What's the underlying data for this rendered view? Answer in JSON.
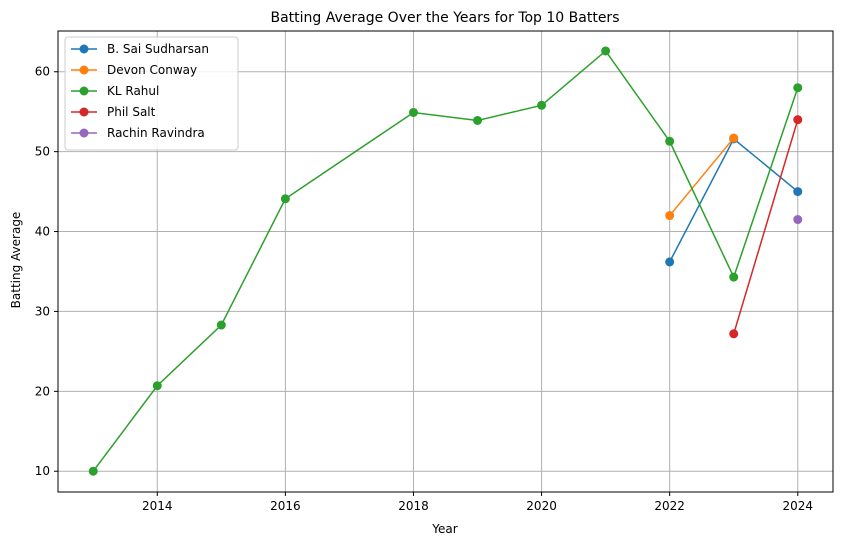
{
  "chart_data": {
    "type": "line",
    "title": "Batting Average Over the Years for Top 10 Batters",
    "xlabel": "Year",
    "ylabel": "Batting Average",
    "xlim": [
      2012.45,
      2024.55
    ],
    "ylim": [
      7.4,
      65.1
    ],
    "xticks": [
      2014,
      2016,
      2018,
      2020,
      2022,
      2024
    ],
    "yticks": [
      10,
      20,
      30,
      40,
      50,
      60
    ],
    "grid": true,
    "legend_position": "top-left",
    "series": [
      {
        "name": "B. Sai Sudharsan",
        "color": "#1f77b4",
        "x": [
          2022,
          2023,
          2024
        ],
        "y": [
          36.2,
          51.6,
          45.0
        ]
      },
      {
        "name": "Devon Conway",
        "color": "#ff7f0e",
        "x": [
          2022,
          2023
        ],
        "y": [
          42.0,
          51.7
        ]
      },
      {
        "name": "KL Rahul",
        "color": "#2ca02c",
        "x": [
          2013,
          2014,
          2015,
          2016,
          2018,
          2019,
          2020,
          2021,
          2022,
          2023,
          2024
        ],
        "y": [
          10.0,
          20.7,
          28.3,
          44.1,
          54.9,
          53.9,
          55.8,
          62.6,
          51.3,
          34.3,
          58.0
        ]
      },
      {
        "name": "Phil Salt",
        "color": "#d62728",
        "x": [
          2023,
          2024
        ],
        "y": [
          27.2,
          54.0
        ]
      },
      {
        "name": "Rachin Ravindra",
        "color": "#9467bd",
        "x": [
          2024
        ],
        "y": [
          41.5
        ]
      }
    ]
  }
}
